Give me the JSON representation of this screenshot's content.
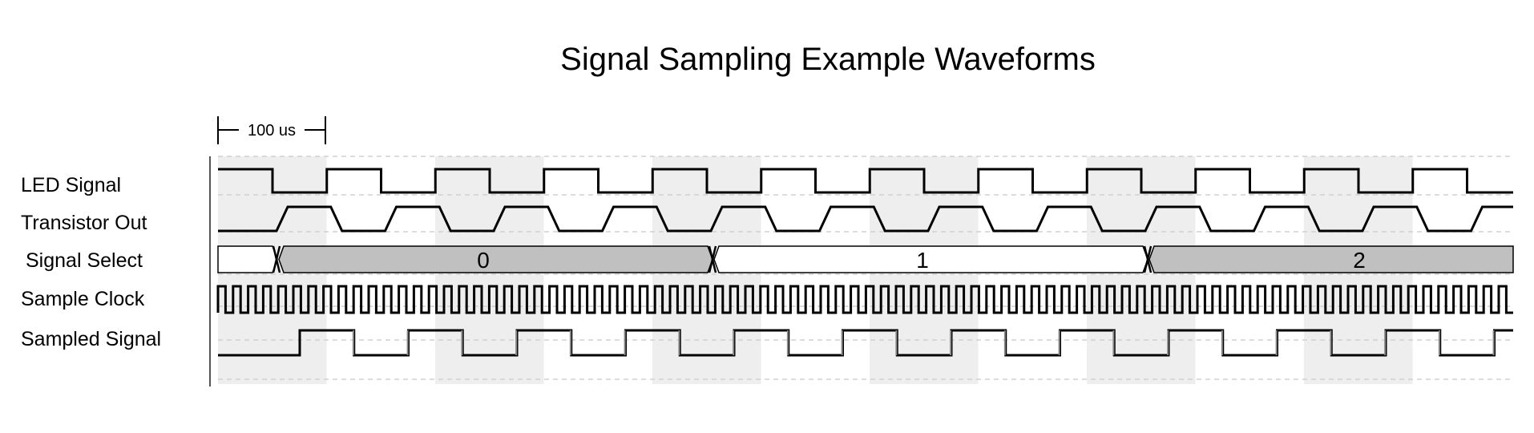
{
  "title": "Signal Sampling Example Waveforms",
  "scale_label": "100 us",
  "signals": [
    {
      "name": "LED Signal"
    },
    {
      "name": "Transistor Out"
    },
    {
      "name": "Signal Select",
      "bus_values": [
        "0",
        "1",
        "2"
      ]
    },
    {
      "name": "Sample Clock"
    },
    {
      "name": "Sampled Signal"
    }
  ],
  "colors": {
    "stripe": "#eeeeee",
    "bus_fill": "#c0c0c0",
    "grid": "#d0d0d0",
    "sample_marker": "#888888"
  }
}
